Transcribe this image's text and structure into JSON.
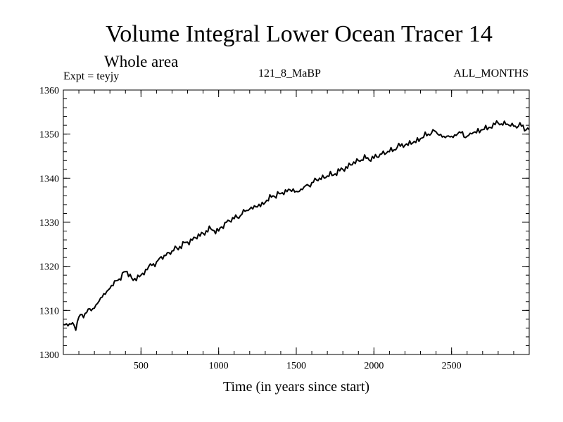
{
  "chart_data": {
    "type": "line",
    "title": "Volume Integral Lower Ocean Tracer 14",
    "subtitle": "Whole area",
    "expt_label": "Expt = teyjy",
    "run_label": "121_8_MaBP",
    "period_label": "ALL_MONTHS",
    "xlabel": "Time (in years since start)",
    "ylabel": "",
    "xlim": [
      0,
      3000
    ],
    "ylim": [
      1300,
      1360
    ],
    "xticks": [
      500,
      1000,
      1500,
      2000,
      2500
    ],
    "yticks": [
      1300,
      1310,
      1320,
      1330,
      1340,
      1350,
      1360
    ],
    "x_minor_step": 100,
    "y_minor_step": 2,
    "grid": false,
    "series": [
      {
        "name": "Volume Integral Lower Ocean Tracer 14",
        "color": "#000000",
        "x": [
          0,
          30,
          60,
          80,
          100,
          150,
          200,
          250,
          300,
          350,
          400,
          430,
          450,
          500,
          550,
          600,
          650,
          700,
          750,
          800,
          850,
          900,
          950,
          1000,
          1050,
          1100,
          1150,
          1200,
          1250,
          1300,
          1350,
          1400,
          1450,
          1500,
          1550,
          1600,
          1650,
          1700,
          1750,
          1800,
          1850,
          1900,
          1950,
          2000,
          2050,
          2100,
          2150,
          2200,
          2250,
          2300,
          2350,
          2380,
          2400,
          2450,
          2500,
          2550,
          2600,
          2620,
          2650,
          2700,
          2750,
          2800,
          2850,
          2900,
          2950,
          3000
        ],
        "values": [
          1306.8,
          1306.5,
          1307.2,
          1305.5,
          1308.5,
          1309.5,
          1310.5,
          1313,
          1315,
          1316.8,
          1318.8,
          1318.2,
          1316.8,
          1318,
          1320,
          1321,
          1322.5,
          1323.5,
          1324.5,
          1325.5,
          1326.5,
          1327.5,
          1328.5,
          1328,
          1330,
          1330.8,
          1331.8,
          1333,
          1333.5,
          1334.5,
          1336,
          1336.5,
          1337.5,
          1337,
          1338,
          1339,
          1340,
          1340.5,
          1341,
          1342,
          1343,
          1344,
          1344.5,
          1344.5,
          1345.5,
          1346,
          1347,
          1347.5,
          1348,
          1349,
          1350,
          1351,
          1350.5,
          1349.5,
          1349.5,
          1350.5,
          1349.5,
          1350.2,
          1350.5,
          1351,
          1351.5,
          1352.5,
          1352.2,
          1351.8,
          1351.8,
          1351
        ]
      }
    ]
  }
}
